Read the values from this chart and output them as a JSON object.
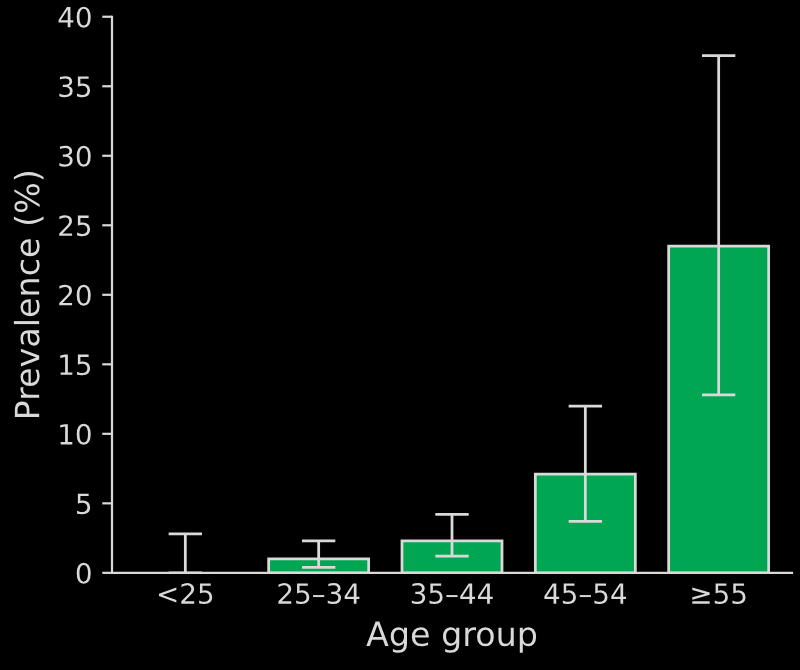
{
  "chart_data": {
    "type": "bar",
    "xlabel": "Age group",
    "ylabel": "Prevalence (%)",
    "categories": [
      "<25",
      "25–34",
      "35–44",
      "45–54",
      "≥55"
    ],
    "values": [
      0,
      1.0,
      2.3,
      7.1,
      23.5
    ],
    "errors": [
      [
        0,
        2.8
      ],
      [
        0.4,
        2.3
      ],
      [
        1.2,
        4.2
      ],
      [
        3.7,
        12.0
      ],
      [
        12.8,
        37.2
      ]
    ],
    "color": "#00a651",
    "ylim": [
      0,
      40
    ],
    "yticks": [
      0,
      5,
      10,
      15,
      20,
      25,
      30,
      35,
      40
    ],
    "grid": false,
    "legend": false
  }
}
